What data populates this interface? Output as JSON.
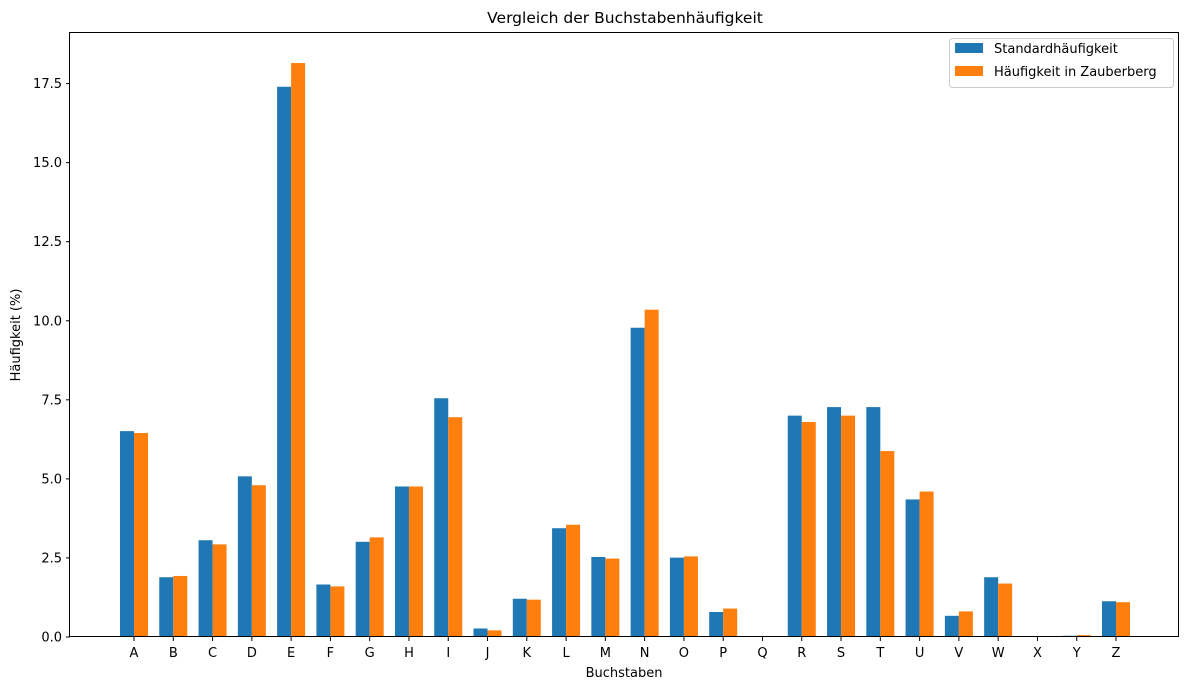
{
  "chart_data": {
    "type": "bar",
    "title": "Vergleich der Buchstabenhäufigkeit",
    "xlabel": "Buchstaben",
    "ylabel": "Häufigkeit (%)",
    "ylim": [
      0,
      19.1
    ],
    "yticks": [
      "0.0",
      "2.5",
      "5.0",
      "7.5",
      "10.0",
      "12.5",
      "15.0",
      "17.5"
    ],
    "grid": false,
    "legend_position": "top-right",
    "categories": [
      "A",
      "B",
      "C",
      "D",
      "E",
      "F",
      "G",
      "H",
      "I",
      "J",
      "K",
      "L",
      "M",
      "N",
      "O",
      "P",
      "Q",
      "R",
      "S",
      "T",
      "U",
      "V",
      "W",
      "X",
      "Y",
      "Z"
    ],
    "series": [
      {
        "name": "Standardhäufigkeit",
        "color": "#1f77b4",
        "values": [
          6.51,
          1.89,
          3.06,
          5.08,
          17.4,
          1.66,
          3.01,
          4.76,
          7.55,
          0.27,
          1.21,
          3.44,
          2.53,
          9.78,
          2.51,
          0.79,
          0.02,
          7.0,
          7.27,
          7.27,
          4.35,
          0.67,
          1.89,
          0.03,
          0.04,
          1.13
        ]
      },
      {
        "name": "Häufigkeit in Zauberberg",
        "color": "#ff7f0e",
        "values": [
          6.45,
          1.93,
          2.93,
          4.8,
          18.15,
          1.6,
          3.15,
          4.76,
          6.95,
          0.21,
          1.18,
          3.55,
          2.48,
          10.35,
          2.55,
          0.9,
          0.02,
          6.8,
          7.0,
          5.88,
          4.6,
          0.81,
          1.69,
          0.02,
          0.06,
          1.1
        ]
      }
    ]
  }
}
